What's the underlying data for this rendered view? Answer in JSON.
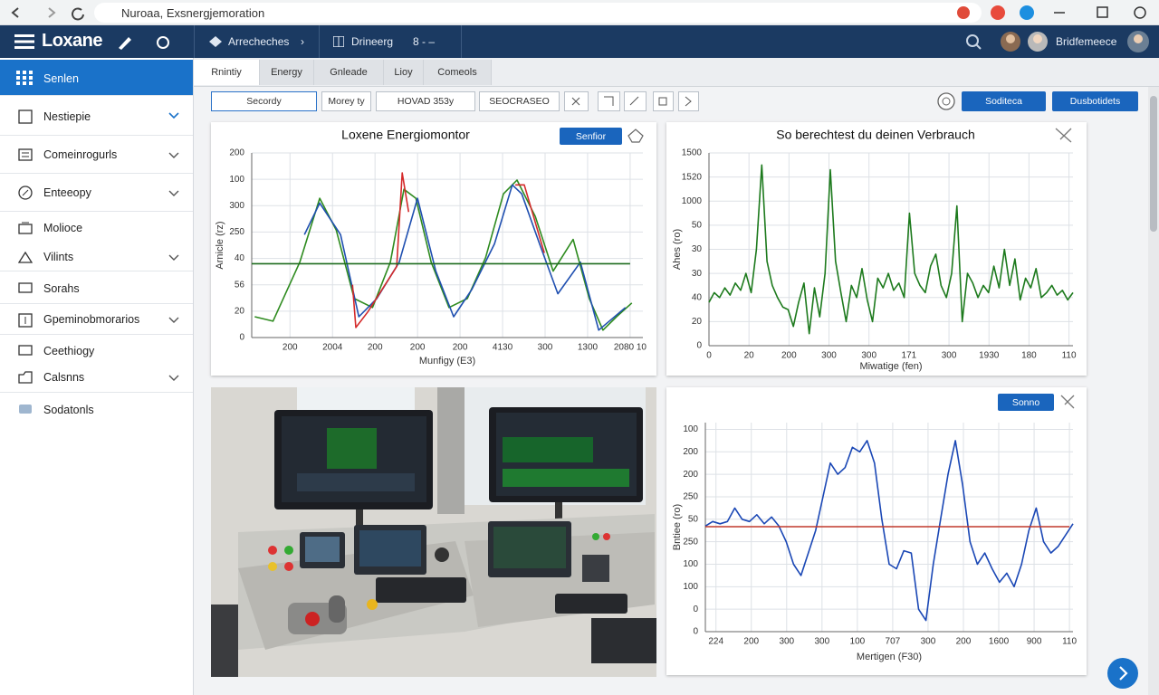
{
  "browser": {
    "url": "Nuroaa, Exsnergjemoration"
  },
  "app": {
    "brand": "Loxane",
    "nav": [
      "Arrecheches",
      "Drineerg",
      "8 - –"
    ],
    "user": "Bridfemeece"
  },
  "sidebar": {
    "items": [
      "Senlen",
      "Nestiepie",
      "Comeinrogurls",
      "Enteeopy",
      "Molioce",
      "Vilints",
      "Sorahs",
      "Gpeminobmorarios",
      "Ceethiogy",
      "Calsnns",
      "Sodatonls"
    ]
  },
  "tabs": [
    "Rnintiy",
    "Energy",
    "Gnleade",
    "Lioy",
    "Comeols"
  ],
  "toolbar": {
    "fields": [
      "Secordy",
      "Morey ty",
      "HOVAD 353y",
      "SEOCRASEO"
    ],
    "buttons": [
      "Soditeca",
      "Dusbotidets"
    ]
  },
  "charts": [
    {
      "type": "line",
      "title": "Loxene Energiomontor",
      "button": "Senfior",
      "ylabel": "Arnicle (rz)",
      "xlabel": "Munfigy (E3)",
      "grid": true,
      "xlim": [
        -0.9,
        8.3
      ],
      "ylim": [
        0,
        7
      ],
      "xticks": [
        {
          "value": 0,
          "label": "200"
        },
        {
          "value": 1,
          "label": "2004"
        },
        {
          "value": 2,
          "label": "200"
        },
        {
          "value": 3,
          "label": "200"
        },
        {
          "value": 4,
          "label": "200"
        },
        {
          "value": 5,
          "label": "4130"
        },
        {
          "value": 6,
          "label": "300"
        },
        {
          "value": 7,
          "label": "1300"
        },
        {
          "value": 8,
          "label": "2080 10"
        }
      ],
      "yticks": [
        0,
        {
          "value": 1,
          "label": "20"
        },
        {
          "value": 2,
          "label": "56"
        },
        {
          "value": 3,
          "label": "40"
        },
        {
          "value": 4,
          "label": "250"
        },
        {
          "value": 5,
          "label": "300"
        },
        {
          "value": 6,
          "label": "100"
        },
        {
          "value": 7,
          "label": "200"
        }
      ],
      "series": [
        {
          "color": "#2e8b1f",
          "x": [
            -0.83,
            -0.4,
            0.23,
            0.7,
            1.09,
            1.51,
            1.94,
            2.36,
            2.68,
            2.96,
            3.32,
            3.74,
            4.17,
            4.6,
            5.02,
            5.34,
            5.77,
            6.19,
            6.66,
            7.04,
            7.36,
            7.68,
            8.04
          ],
          "values": [
            0.79,
            0.62,
            2.86,
            5.28,
            4.07,
            1.48,
            1.14,
            2.86,
            5.62,
            5.28,
            2.86,
            1.14,
            1.48,
            3.03,
            5.45,
            5.97,
            4.59,
            2.52,
            3.72,
            1.48,
            0.28,
            0.79,
            1.31
          ]
        },
        {
          "color": "#1f4fb0",
          "x": [
            0.34,
            0.7,
            1.19,
            1.62,
            2.04,
            2.57,
            3.0,
            3.43,
            3.85,
            4.28,
            4.81,
            5.23,
            5.45,
            5.87,
            6.3,
            6.83,
            7.26,
            7.89
          ],
          "values": [
            3.9,
            5.1,
            3.9,
            0.79,
            1.48,
            2.86,
            5.28,
            2.52,
            0.79,
            1.83,
            3.55,
            5.79,
            5.45,
            3.55,
            1.66,
            2.86,
            0.28,
            1.14
          ]
        },
        {
          "color": "#d42a2a",
          "x": [
            1.47,
            1.55,
            1.83,
            2.51,
            2.64,
            2.79,
            5.0,
            5.3,
            5.51,
            5.98
          ],
          "values": [
            2.0,
            0.38,
            0.97,
            2.69,
            6.24,
            4.76,
            null,
            5.79,
            5.79,
            3.21
          ]
        },
        {
          "color": "#1e6b1e",
          "x": [
            -0.9,
            8.0
          ],
          "values": [
            2.8,
            2.8
          ]
        }
      ]
    },
    {
      "type": "line",
      "title": "So berechtest du deinen Verbrauch",
      "ylabel": "Ahes (ro)",
      "xlabel": "Miwatige (fen)",
      "grid": true,
      "xlim": [
        0,
        9.1
      ],
      "ylim": [
        0,
        8
      ],
      "xticks": [
        0,
        {
          "value": 1,
          "label": "20"
        },
        {
          "value": 2,
          "label": "200"
        },
        {
          "value": 3,
          "label": "300"
        },
        {
          "value": 4,
          "label": "300"
        },
        {
          "value": 5,
          "label": "171"
        },
        {
          "value": 6,
          "label": "300"
        },
        {
          "value": 7,
          "label": "1930"
        },
        {
          "value": 8,
          "label": "180"
        },
        {
          "value": 9,
          "label": "110"
        }
      ],
      "yticks": [
        0,
        {
          "value": 1,
          "label": "20"
        },
        {
          "value": 2,
          "label": "40"
        },
        {
          "value": 3,
          "label": "30"
        },
        {
          "value": 4,
          "label": "30"
        },
        {
          "value": 5,
          "label": "50"
        },
        {
          "value": 6,
          "label": "1000"
        },
        {
          "value": 7,
          "label": "1520"
        },
        {
          "value": 8,
          "label": "1500"
        }
      ],
      "series": [
        {
          "color": "#1d7a1d",
          "values": [
            1.8,
            2.2,
            2.0,
            2.4,
            2.1,
            2.6,
            2.3,
            3.0,
            2.2,
            4.0,
            7.5,
            3.5,
            2.5,
            2.0,
            1.6,
            1.5,
            0.8,
            1.8,
            2.6,
            0.5,
            2.4,
            1.2,
            3.0,
            7.3,
            3.5,
            2.2,
            1.0,
            2.5,
            2.0,
            3.2,
            1.9,
            1.0,
            2.8,
            2.4,
            3.0,
            2.3,
            2.6,
            2.0,
            5.5,
            3.0,
            2.5,
            2.2,
            3.3,
            3.8,
            2.5,
            2.0,
            3.0,
            5.8,
            1.0,
            3.0,
            2.6,
            2.0,
            2.5,
            2.2,
            3.3,
            2.4,
            4.0,
            2.5,
            3.6,
            1.9,
            2.8,
            2.4,
            3.2,
            2.0,
            2.2,
            2.5,
            2.1,
            2.3,
            1.9,
            2.2
          ]
        }
      ]
    },
    {
      "type": "line",
      "button": "Sonno",
      "ylabel": "Bntiee (ro)",
      "xlabel": "Mertigen (F30)",
      "grid": true,
      "xlim": [
        -0.3,
        10.1
      ],
      "ylim": [
        0,
        9.3
      ],
      "xticks": [
        {
          "value": 0,
          "label": "224"
        },
        {
          "value": 1,
          "label": "200"
        },
        {
          "value": 2,
          "label": "300"
        },
        {
          "value": 3,
          "label": "300"
        },
        {
          "value": 4,
          "label": "100"
        },
        {
          "value": 5,
          "label": "707"
        },
        {
          "value": 6,
          "label": "300"
        },
        {
          "value": 7,
          "label": "200"
        },
        {
          "value": 8,
          "label": "1600"
        },
        {
          "value": 9,
          "label": "900"
        },
        {
          "value": 10,
          "label": "110"
        }
      ],
      "yticks": [
        0,
        {
          "value": 1,
          "label": "0"
        },
        {
          "value": 2,
          "label": "100"
        },
        {
          "value": 3,
          "label": "100"
        },
        {
          "value": 4,
          "label": "250"
        },
        {
          "value": 5,
          "label": "50"
        },
        {
          "value": 6,
          "label": "250"
        },
        {
          "value": 7,
          "label": "200"
        },
        {
          "value": 8,
          "label": "200"
        },
        {
          "value": 9,
          "label": "100"
        }
      ],
      "series": [
        {
          "color": "#1a47b5",
          "values": [
            4.7,
            4.9,
            4.8,
            4.9,
            5.5,
            5.0,
            4.9,
            5.2,
            4.8,
            5.1,
            4.7,
            4.0,
            3.0,
            2.5,
            3.5,
            4.5,
            6.0,
            7.5,
            7.0,
            7.3,
            8.2,
            8.0,
            8.5,
            7.5,
            5.0,
            3.0,
            2.8,
            3.6,
            3.5,
            1.0,
            0.5,
            3.0,
            5.0,
            7.0,
            8.5,
            6.5,
            4.0,
            3.0,
            3.5,
            2.8,
            2.2,
            2.6,
            2.0,
            3.0,
            4.5,
            5.5,
            4.0,
            3.5,
            3.8,
            4.3,
            4.8
          ]
        },
        {
          "color": "#c0392b",
          "x": [
            -0.3,
            10.0
          ],
          "values": [
            4.67,
            4.67
          ]
        }
      ]
    }
  ]
}
